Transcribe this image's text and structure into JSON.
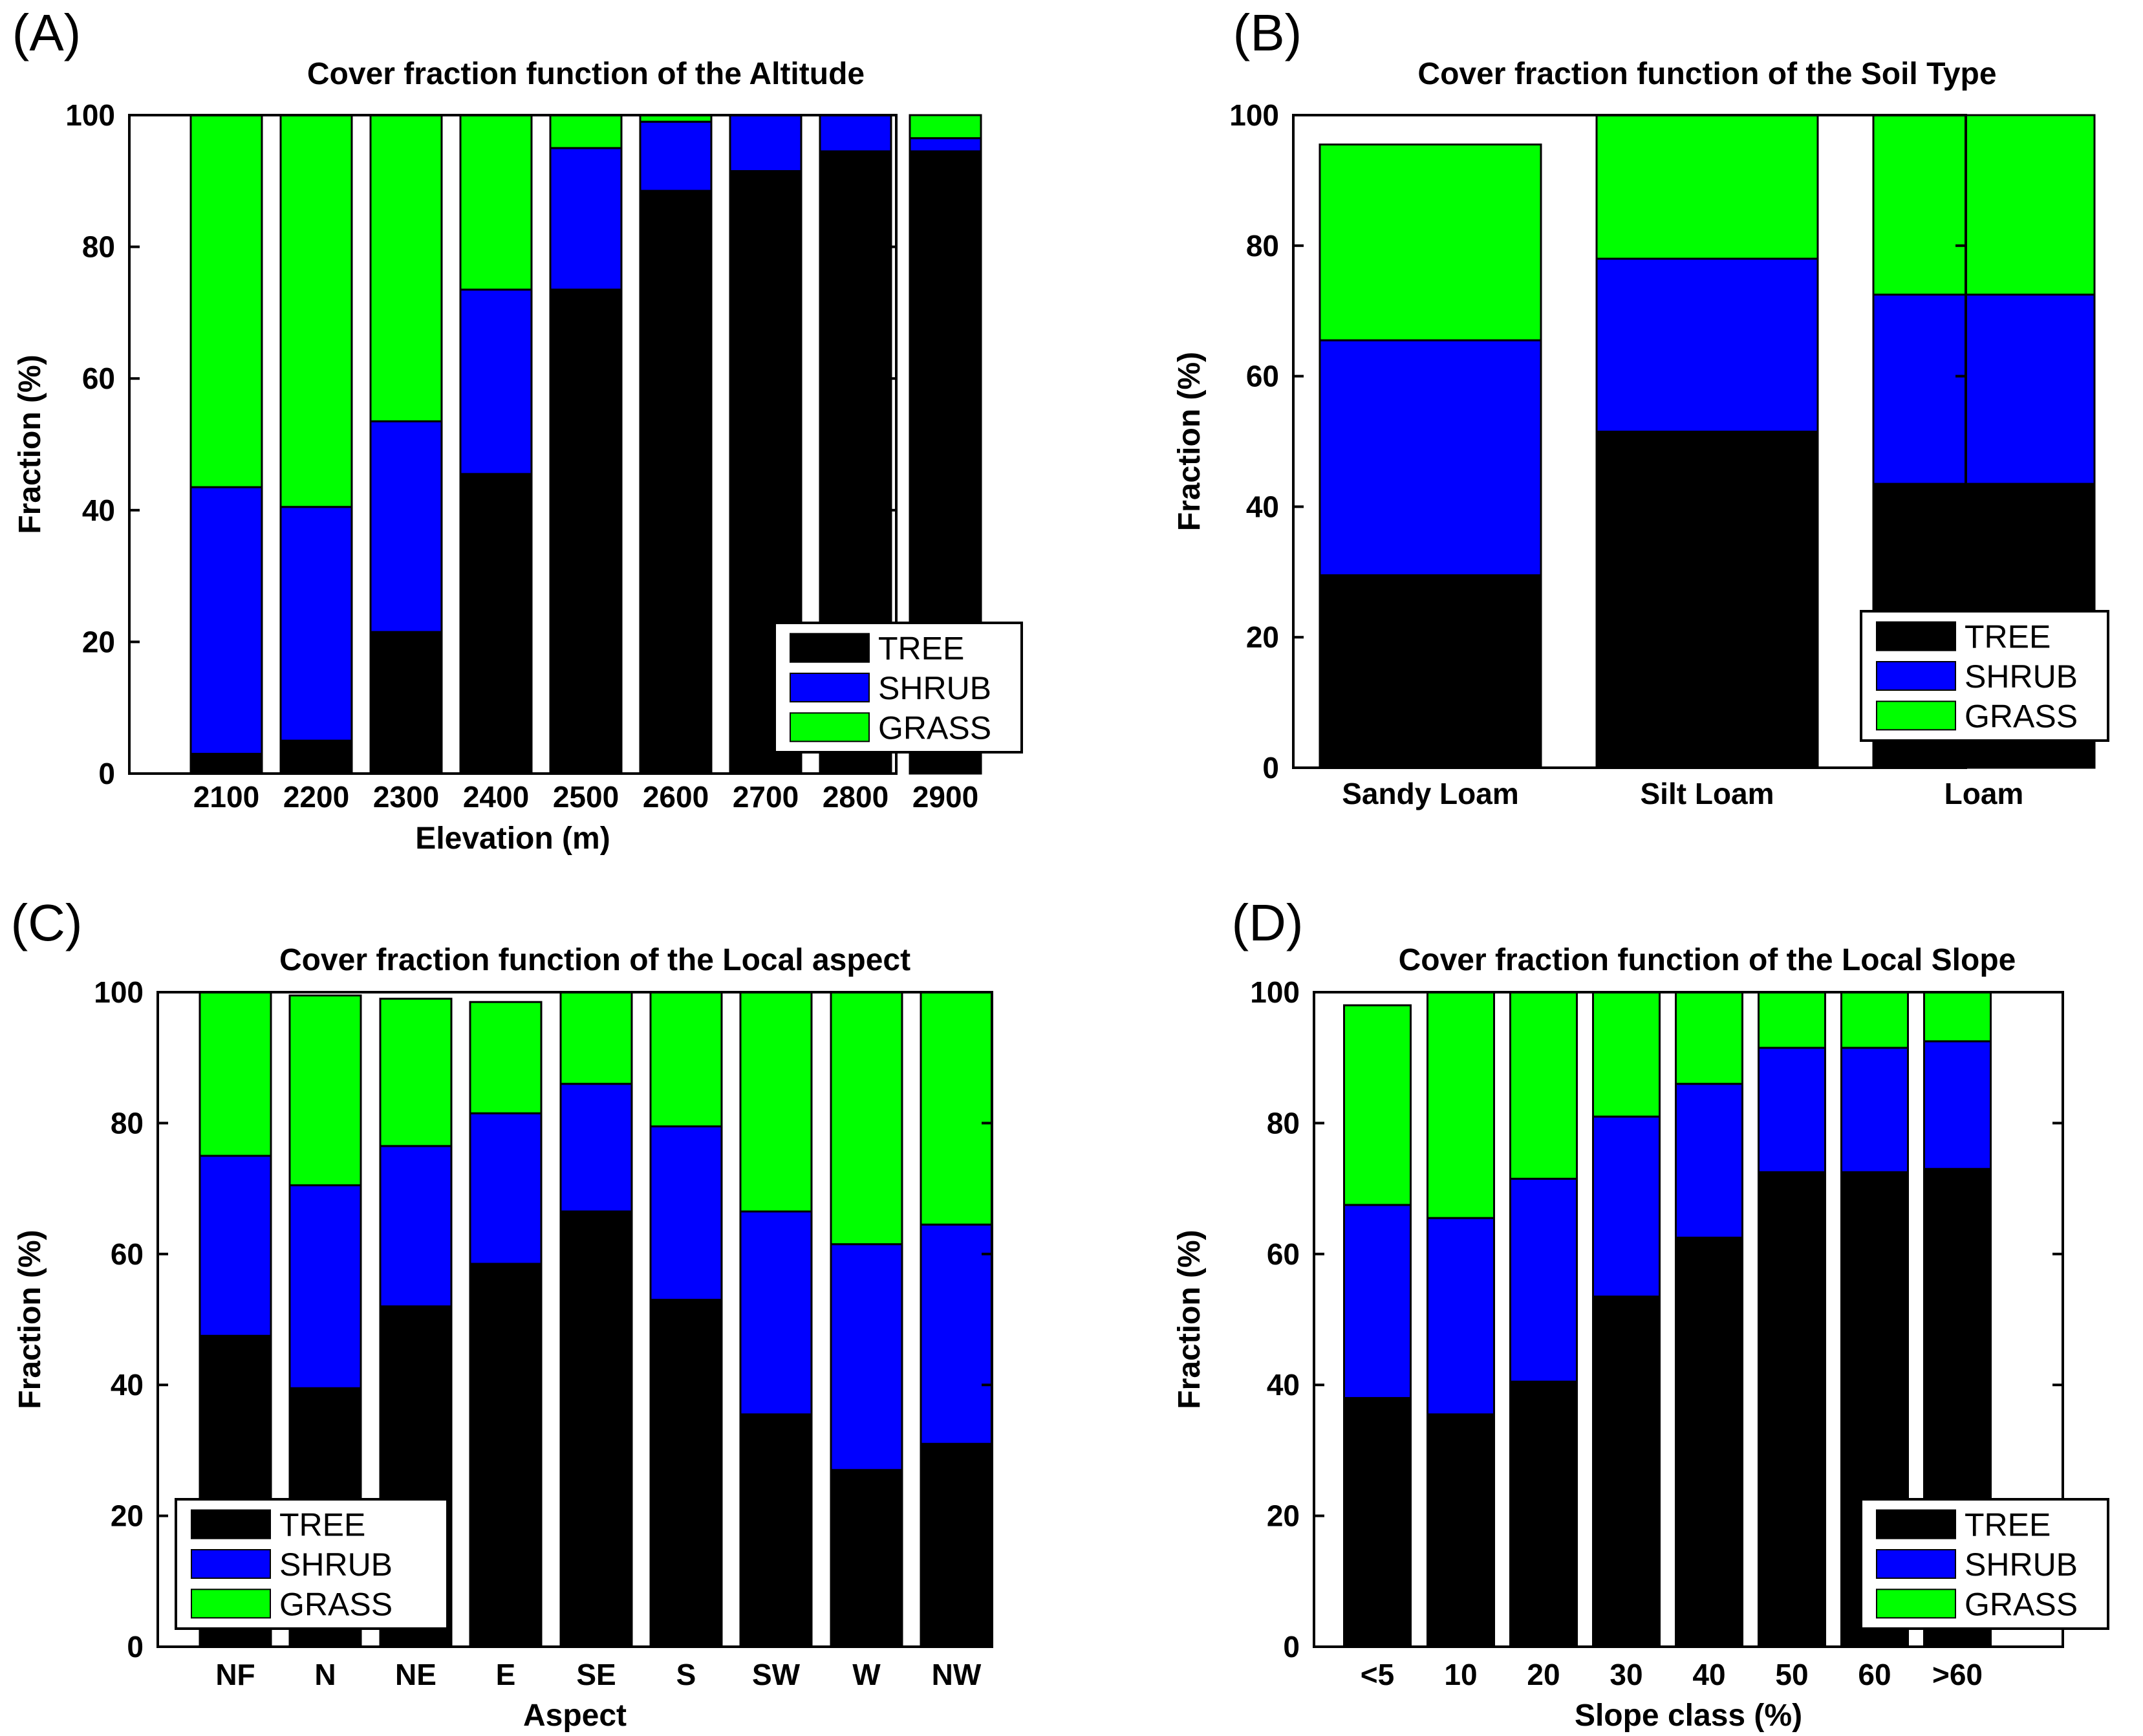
{
  "colors": {
    "tree": "#000000",
    "shrub": "#0000ff",
    "grass": "#00ff00",
    "axis": "#000000",
    "background": "#ffffff"
  },
  "chart_data": [
    {
      "panel": "(A)",
      "type": "bar",
      "stacked": true,
      "title": "Cover fraction function of the Altitude",
      "xlabel": "Elevation (m)",
      "ylabel": "Fraction (%)",
      "ylim": [
        0,
        100
      ],
      "yticks": [
        "0",
        "20",
        "40",
        "60",
        "80",
        "100"
      ],
      "categories": [
        "2100",
        "2200",
        "2300",
        "2400",
        "2500",
        "2600",
        "2700",
        "2800",
        "2900"
      ],
      "series": [
        {
          "name": "TREE",
          "values": [
            3,
            5,
            21.5,
            45.5,
            73.5,
            88.5,
            91.5,
            94.5,
            94.5
          ]
        },
        {
          "name": "SHRUB",
          "values": [
            40.5,
            35.5,
            32,
            28,
            21.5,
            10.5,
            8.5,
            5.5,
            2
          ]
        },
        {
          "name": "GRASS",
          "values": [
            56.5,
            59.5,
            46.5,
            26.5,
            5,
            1,
            0,
            0,
            3.5
          ]
        }
      ],
      "legend": [
        "TREE",
        "SHRUB",
        "GRASS"
      ],
      "legend_position": "bottom-right"
    },
    {
      "panel": "(B)",
      "type": "bar",
      "stacked": true,
      "title": "Cover fraction function of the Soil Type",
      "xlabel": "",
      "ylabel": "Fraction (%)",
      "ylim": [
        0,
        100
      ],
      "yticks": [
        "0",
        "20",
        "40",
        "60",
        "80",
        "100"
      ],
      "categories": [
        "Sandy Loam",
        "Silt Loam",
        "Loam"
      ],
      "series": [
        {
          "name": "TREE",
          "values": [
            29.5,
            51.5,
            43.5
          ]
        },
        {
          "name": "SHRUB",
          "values": [
            36,
            26.5,
            29
          ]
        },
        {
          "name": "GRASS",
          "values": [
            30,
            22,
            27.5
          ]
        }
      ],
      "legend": [
        "TREE",
        "SHRUB",
        "GRASS"
      ],
      "legend_position": "bottom-right"
    },
    {
      "panel": "(C)",
      "type": "bar",
      "stacked": true,
      "title": "Cover fraction function of the Local aspect",
      "xlabel": "Aspect",
      "ylabel": "Fraction (%)",
      "ylim": [
        0,
        100
      ],
      "yticks": [
        "0",
        "20",
        "40",
        "60",
        "80",
        "100"
      ],
      "categories": [
        "NF",
        "N",
        "NE",
        "E",
        "SE",
        "S",
        "SW",
        "W",
        "NW"
      ],
      "series": [
        {
          "name": "TREE",
          "values": [
            47.5,
            39.5,
            52,
            58.5,
            66.5,
            53,
            35.5,
            27,
            31
          ]
        },
        {
          "name": "SHRUB",
          "values": [
            27.5,
            31,
            24.5,
            23,
            19.5,
            26.5,
            31,
            34.5,
            33.5
          ]
        },
        {
          "name": "GRASS",
          "values": [
            25,
            29,
            22.5,
            17,
            14,
            20.5,
            33.5,
            38.5,
            35.5
          ]
        }
      ],
      "legend": [
        "TREE",
        "SHRUB",
        "GRASS"
      ],
      "legend_position": "bottom-left"
    },
    {
      "panel": "(D)",
      "type": "bar",
      "stacked": true,
      "title": "Cover fraction function of the Local Slope",
      "xlabel": "Slope class (%)",
      "ylabel": "Fraction (%)",
      "ylim": [
        0,
        100
      ],
      "yticks": [
        "0",
        "20",
        "40",
        "60",
        "80",
        "100"
      ],
      "categories": [
        "<5",
        "10",
        "20",
        "30",
        "40",
        "50",
        "60",
        ">60"
      ],
      "series": [
        {
          "name": "TREE",
          "values": [
            38,
            35.5,
            40.5,
            53.5,
            62.5,
            72.5,
            72.5,
            73
          ]
        },
        {
          "name": "SHRUB",
          "values": [
            29.5,
            30,
            31,
            27.5,
            23.5,
            19,
            19,
            19.5
          ]
        },
        {
          "name": "GRASS",
          "values": [
            30.5,
            34.5,
            28.5,
            19,
            14,
            8.5,
            8.5,
            7.5
          ]
        }
      ],
      "legend": [
        "TREE",
        "SHRUB",
        "GRASS"
      ],
      "legend_position": "bottom-right"
    }
  ]
}
